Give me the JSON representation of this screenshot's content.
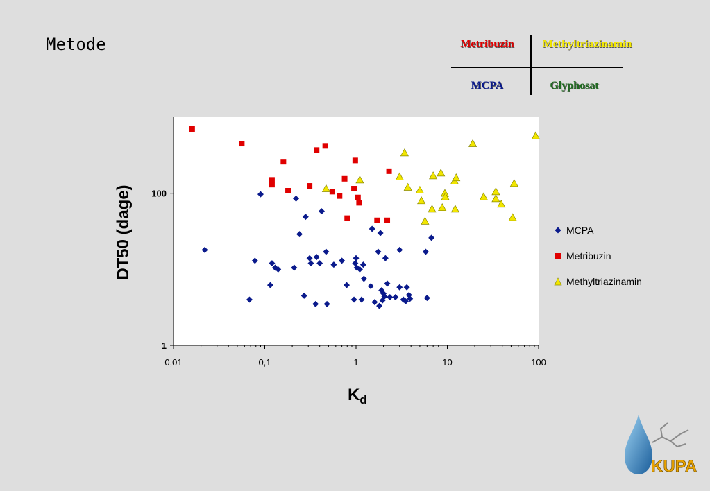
{
  "slide": {
    "title": "Metode",
    "quadrant": {
      "top_left": {
        "label": "Metribuzin",
        "color": "#e00000"
      },
      "top_right": {
        "label": "Methyltriazinamin",
        "color": "#f2e600"
      },
      "bottom_left": {
        "label": "MCPA",
        "color": "#0a1a8c"
      },
      "bottom_right": {
        "label": "Glyphosat",
        "color": "#1f6b1f"
      }
    },
    "logo_text": "KUPA"
  },
  "chart_data": {
    "type": "scatter",
    "xlabel": "K",
    "xlabel_sub": "d",
    "ylabel": "DT50 (dage)",
    "x_scale": "log",
    "y_scale": "log",
    "xlim": [
      0.01,
      100
    ],
    "ylim": [
      1,
      1000
    ],
    "x_ticks": [
      {
        "v": 0.01,
        "label": "0,01"
      },
      {
        "v": 0.1,
        "label": "0,1"
      },
      {
        "v": 1,
        "label": "1"
      },
      {
        "v": 10,
        "label": "10"
      },
      {
        "v": 100,
        "label": "100"
      }
    ],
    "y_ticks": [
      {
        "v": 1,
        "label": "1"
      },
      {
        "v": 100,
        "label": "100"
      }
    ],
    "legend_position": "right",
    "grid": false,
    "series": [
      {
        "name": "MCPA",
        "marker": "diamond",
        "color": "#0a1a8c",
        "points": [
          [
            0.022,
            18
          ],
          [
            0.068,
            4
          ],
          [
            0.078,
            13
          ],
          [
            0.09,
            97
          ],
          [
            0.115,
            6.2
          ],
          [
            0.12,
            12
          ],
          [
            0.13,
            10.5
          ],
          [
            0.14,
            10
          ],
          [
            0.21,
            10.5
          ],
          [
            0.22,
            85
          ],
          [
            0.24,
            29
          ],
          [
            0.27,
            4.5
          ],
          [
            0.28,
            49
          ],
          [
            0.31,
            14
          ],
          [
            0.32,
            12
          ],
          [
            0.36,
            3.5
          ],
          [
            0.37,
            14.5
          ],
          [
            0.4,
            12
          ],
          [
            0.42,
            58
          ],
          [
            0.47,
            17
          ],
          [
            0.48,
            3.5
          ],
          [
            0.57,
            11.5
          ],
          [
            0.7,
            13
          ],
          [
            0.79,
            6.2
          ],
          [
            0.95,
            4
          ],
          [
            0.98,
            12
          ],
          [
            1.0,
            14
          ],
          [
            1.02,
            10.5
          ],
          [
            1.1,
            10
          ],
          [
            1.15,
            4
          ],
          [
            1.2,
            11.5
          ],
          [
            1.22,
            7.5
          ],
          [
            1.45,
            6
          ],
          [
            1.5,
            34
          ],
          [
            1.6,
            3.7
          ],
          [
            1.75,
            17
          ],
          [
            1.8,
            3.3
          ],
          [
            1.85,
            30
          ],
          [
            1.9,
            5.3
          ],
          [
            1.95,
            3.9
          ],
          [
            2.0,
            4.8
          ],
          [
            2.05,
            4.4
          ],
          [
            2.1,
            14
          ],
          [
            2.2,
            6.5
          ],
          [
            2.35,
            4.3
          ],
          [
            2.7,
            4.3
          ],
          [
            3.0,
            18
          ],
          [
            3.0,
            5.8
          ],
          [
            3.3,
            4
          ],
          [
            3.5,
            3.8
          ],
          [
            3.6,
            5.8
          ],
          [
            3.8,
            4.6
          ],
          [
            3.9,
            4.1
          ],
          [
            5.8,
            17
          ],
          [
            6.0,
            4.2
          ],
          [
            6.7,
            26
          ]
        ]
      },
      {
        "name": "Metribuzin",
        "marker": "square",
        "color": "#e00000",
        "points": [
          [
            0.016,
            700
          ],
          [
            0.056,
            450
          ],
          [
            0.12,
            150
          ],
          [
            0.12,
            130
          ],
          [
            0.16,
            260
          ],
          [
            0.18,
            108
          ],
          [
            0.31,
            125
          ],
          [
            0.37,
            370
          ],
          [
            0.46,
            420
          ],
          [
            0.55,
            105
          ],
          [
            0.66,
            92
          ],
          [
            0.75,
            155
          ],
          [
            0.8,
            47
          ],
          [
            0.95,
            115
          ],
          [
            0.98,
            270
          ],
          [
            1.05,
            88
          ],
          [
            1.08,
            75
          ],
          [
            1.7,
            44
          ],
          [
            2.2,
            44
          ],
          [
            2.3,
            195
          ]
        ]
      },
      {
        "name": "Methyltriazinamin",
        "marker": "triangle",
        "color": "#f2e600",
        "points": [
          [
            0.47,
            115
          ],
          [
            1.1,
            150
          ],
          [
            3.0,
            165
          ],
          [
            3.4,
            340
          ],
          [
            3.7,
            120
          ],
          [
            5.0,
            110
          ],
          [
            5.2,
            80
          ],
          [
            5.7,
            43
          ],
          [
            6.8,
            62
          ],
          [
            7.0,
            170
          ],
          [
            8.5,
            185
          ],
          [
            8.8,
            65
          ],
          [
            9.4,
            100
          ],
          [
            9.5,
            90
          ],
          [
            12,
            145
          ],
          [
            12.2,
            62
          ],
          [
            12.5,
            160
          ],
          [
            19,
            450
          ],
          [
            25,
            90
          ],
          [
            34,
            105
          ],
          [
            34,
            85
          ],
          [
            39,
            72
          ],
          [
            52,
            48
          ],
          [
            54,
            135
          ],
          [
            93,
            570
          ]
        ]
      }
    ]
  }
}
